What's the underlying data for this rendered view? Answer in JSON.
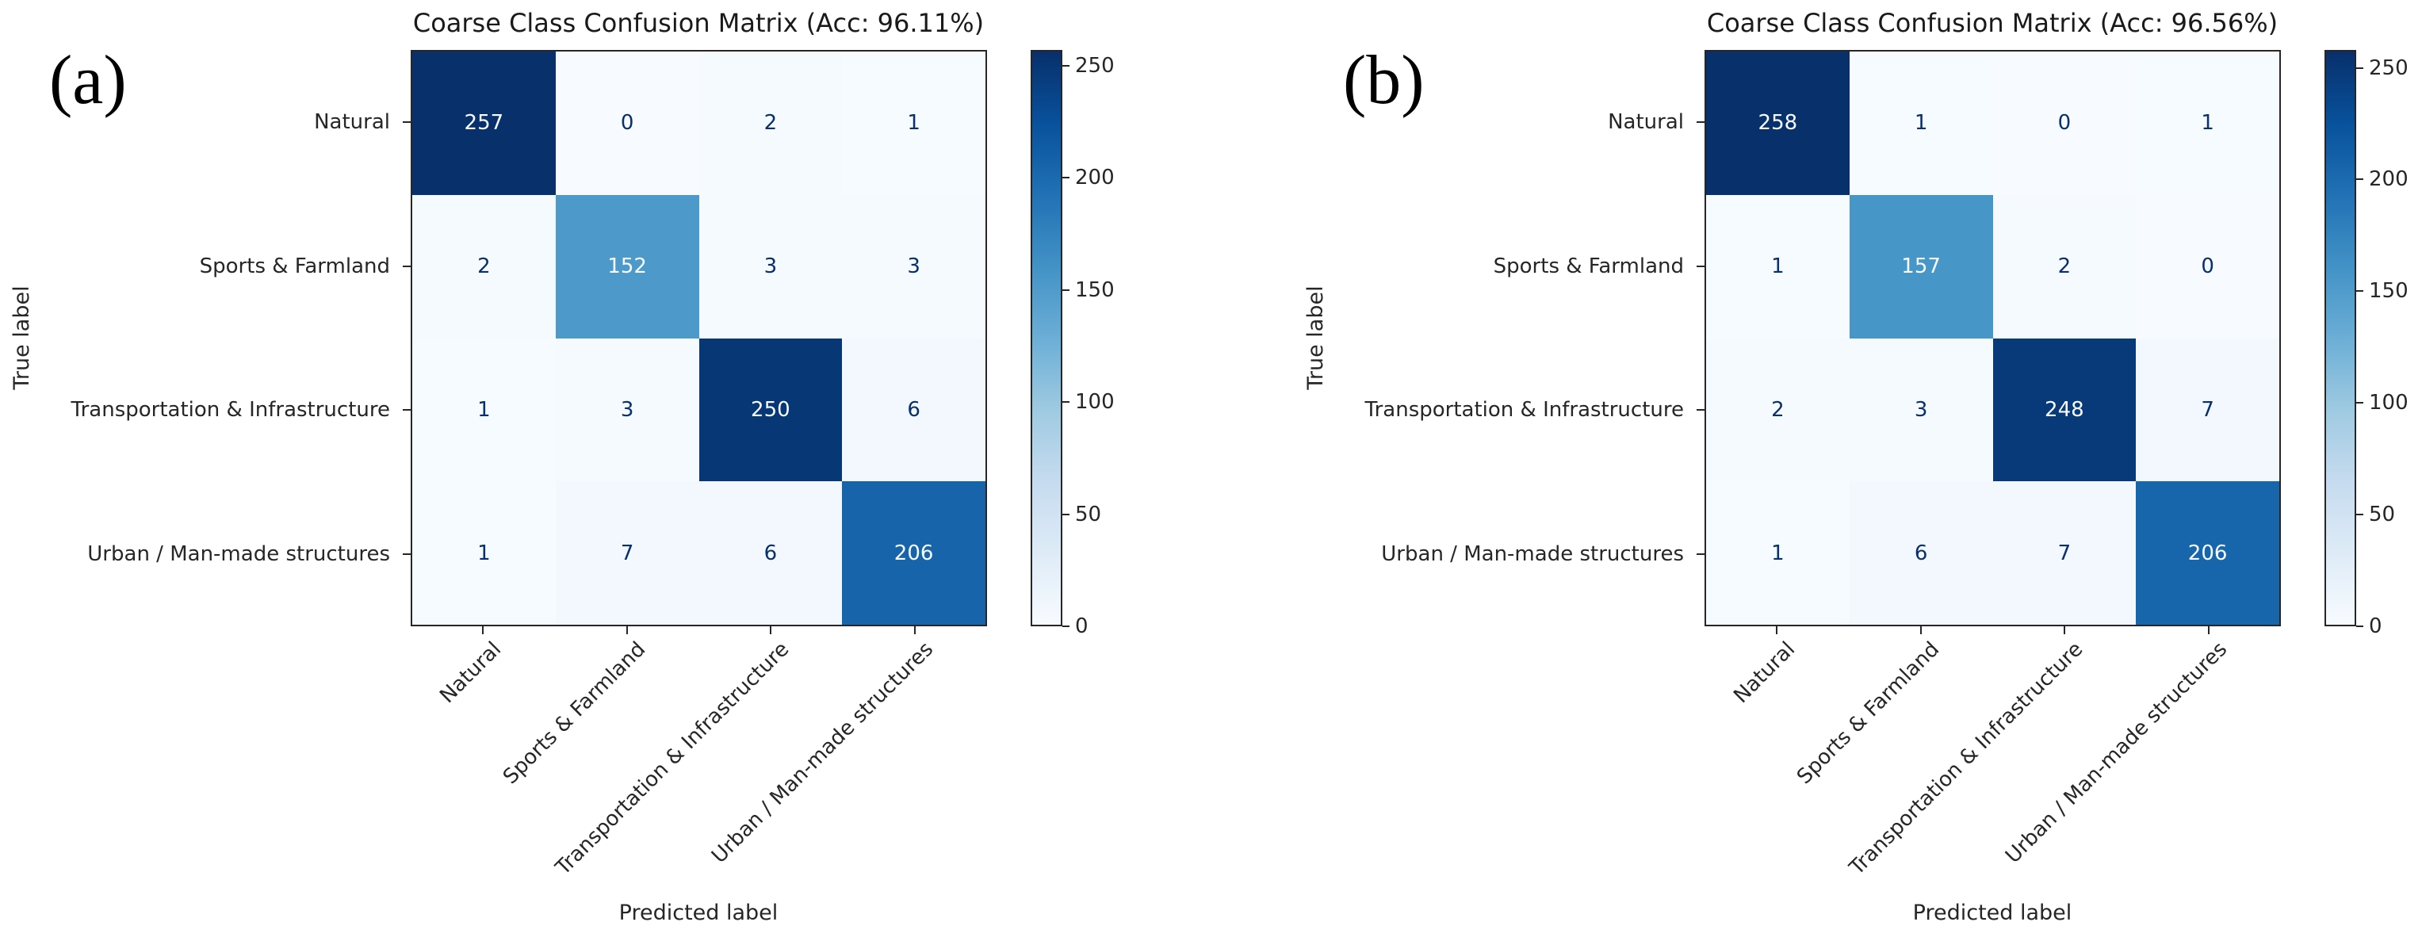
{
  "chart_data": [
    {
      "type": "heatmap",
      "panel_tag": "(a)",
      "title": "Coarse Class Confusion Matrix (Acc: 96.11%)",
      "accuracy_pct": 96.11,
      "xlabel": "Predicted label",
      "ylabel": "True label",
      "categories": [
        "Natural",
        "Sports & Farmland",
        "Transportation & Infrastructure",
        "Urban / Man-made structures"
      ],
      "matrix": [
        [
          257,
          0,
          2,
          1
        ],
        [
          2,
          152,
          3,
          3
        ],
        [
          1,
          3,
          250,
          6
        ],
        [
          1,
          7,
          6,
          206
        ]
      ],
      "vmin": 0,
      "vmax": 257,
      "colorbar_ticks": [
        0,
        50,
        100,
        150,
        200,
        250
      ],
      "colormap": "Blues",
      "x_tick_rotation_deg": 45,
      "legend_position": "right-colorbar",
      "grid": false
    },
    {
      "type": "heatmap",
      "panel_tag": "(b)",
      "title": "Coarse Class Confusion Matrix (Acc: 96.56%)",
      "accuracy_pct": 96.56,
      "xlabel": "Predicted label",
      "ylabel": "True label",
      "categories": [
        "Natural",
        "Sports & Farmland",
        "Transportation & Infrastructure",
        "Urban / Man-made structures"
      ],
      "matrix": [
        [
          258,
          1,
          0,
          1
        ],
        [
          1,
          157,
          2,
          0
        ],
        [
          2,
          3,
          248,
          7
        ],
        [
          1,
          6,
          7,
          206
        ]
      ],
      "vmin": 0,
      "vmax": 258,
      "colorbar_ticks": [
        0,
        50,
        100,
        150,
        200,
        250
      ],
      "colormap": "Blues",
      "x_tick_rotation_deg": 45,
      "legend_position": "right-colorbar",
      "grid": false
    }
  ],
  "style": {
    "background": "#ffffff",
    "blues_colormap_stops": [
      [
        0.0,
        "#f7fbff"
      ],
      [
        0.125,
        "#deebf7"
      ],
      [
        0.25,
        "#c6dbef"
      ],
      [
        0.375,
        "#9ecae1"
      ],
      [
        0.5,
        "#6baed6"
      ],
      [
        0.625,
        "#4292c6"
      ],
      [
        0.75,
        "#2171b5"
      ],
      [
        0.875,
        "#08519c"
      ],
      [
        1.0,
        "#08306b"
      ]
    ],
    "annotation_color_on_dark": "#f7fbff",
    "annotation_color_on_light": "#08306b",
    "axis_color": "#262626",
    "title_color": "#1a1a1a",
    "tag_color": "#000000"
  }
}
